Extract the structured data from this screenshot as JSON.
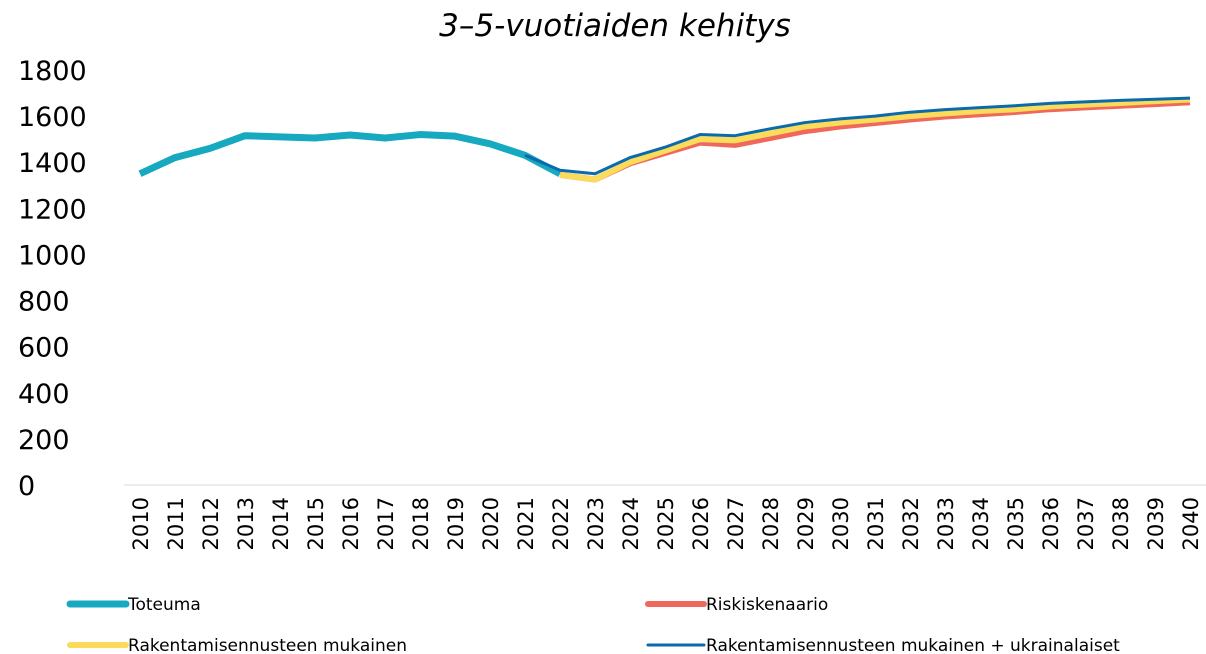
{
  "chart_data": {
    "type": "line",
    "title": "3–5-vuotiaiden kehitys",
    "categories": [
      "2010",
      "2011",
      "2012",
      "2013",
      "2014",
      "2015",
      "2016",
      "2017",
      "2018",
      "2019",
      "2020",
      "2021",
      "2022",
      "2023",
      "2024",
      "2025",
      "2026",
      "2027",
      "2028",
      "2029",
      "2030",
      "2031",
      "2032",
      "2033",
      "2034",
      "2035",
      "2036",
      "2037",
      "2038",
      "2039",
      "2040"
    ],
    "ylim": [
      0,
      1800
    ],
    "yticks": [
      0,
      200,
      400,
      600,
      800,
      1000,
      1200,
      1400,
      1600,
      1800
    ],
    "grid": false,
    "legend": "bottom",
    "series": [
      {
        "name": "Toteuma",
        "color": "#17a9c0",
        "values": [
          1350,
          1420,
          1460,
          1515,
          1510,
          1505,
          1518,
          1505,
          1520,
          1513,
          1480,
          1430,
          1350,
          null,
          null,
          null,
          null,
          null,
          null,
          null,
          null,
          null,
          null,
          null,
          null,
          null,
          null,
          null,
          null,
          null,
          null
        ]
      },
      {
        "name": "Riskiskenaario",
        "color": "#f0685c",
        "values": [
          null,
          null,
          null,
          null,
          null,
          null,
          null,
          null,
          null,
          null,
          null,
          null,
          1345,
          1325,
          1395,
          1440,
          1485,
          1475,
          1505,
          1535,
          1555,
          1570,
          1585,
          1598,
          1608,
          1618,
          1630,
          1638,
          1645,
          1652,
          1660
        ]
      },
      {
        "name": "Rakentamisennusteen mukainen",
        "color": "#fadc5a",
        "values": [
          null,
          null,
          null,
          null,
          null,
          null,
          null,
          null,
          null,
          null,
          null,
          null,
          1345,
          1325,
          1400,
          1450,
          1500,
          1495,
          1525,
          1555,
          1572,
          1585,
          1600,
          1612,
          1622,
          1630,
          1642,
          1650,
          1657,
          1665,
          1672
        ]
      },
      {
        "name": "Rakentamisennusteen mukainen + ukrainalaiset",
        "color": "#0a6aab",
        "values": [
          null,
          null,
          null,
          null,
          null,
          null,
          null,
          null,
          null,
          null,
          null,
          1430,
          1365,
          1350,
          1420,
          1465,
          1520,
          1515,
          1545,
          1572,
          1588,
          1600,
          1617,
          1628,
          1637,
          1645,
          1655,
          1662,
          1668,
          1673,
          1678
        ]
      }
    ]
  }
}
